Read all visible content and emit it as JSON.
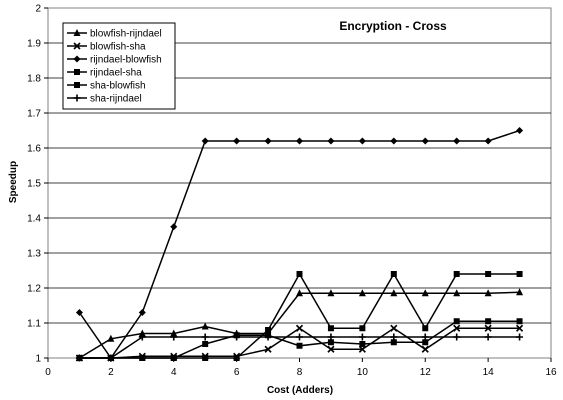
{
  "chart_data": {
    "type": "line",
    "title": "Encryption - Cross",
    "xlabel": "Cost (Adders)",
    "ylabel": "Speedup",
    "xlim": [
      0,
      16
    ],
    "ylim": [
      1,
      2
    ],
    "xticks": [
      0,
      2,
      4,
      6,
      8,
      10,
      12,
      14,
      16
    ],
    "yticks": [
      1,
      1.1,
      1.2,
      1.3,
      1.4,
      1.5,
      1.6,
      1.7,
      1.8,
      1.9,
      2
    ],
    "grid": "horizontal",
    "legend_position": "top-left",
    "series": [
      {
        "name": "blowfish-rijndael",
        "marker": "triangle",
        "x": [
          1,
          2,
          3,
          4,
          5,
          6,
          7,
          8,
          9,
          10,
          11,
          12,
          13,
          14,
          15
        ],
        "y": [
          1.0,
          1.055,
          1.07,
          1.07,
          1.09,
          1.07,
          1.07,
          1.185,
          1.185,
          1.185,
          1.185,
          1.185,
          1.185,
          1.185,
          1.188
        ]
      },
      {
        "name": "blowfish-sha",
        "marker": "x",
        "x": [
          1,
          2,
          3,
          4,
          5,
          6,
          7,
          8,
          9,
          10,
          11,
          12,
          13,
          14,
          15
        ],
        "y": [
          1.0,
          1.0,
          1.005,
          1.005,
          1.005,
          1.005,
          1.025,
          1.085,
          1.025,
          1.025,
          1.085,
          1.025,
          1.085,
          1.085,
          1.085
        ]
      },
      {
        "name": "rijndael-blowfish",
        "marker": "diamond",
        "x": [
          1,
          2,
          3,
          4,
          5,
          6,
          7,
          8,
          9,
          10,
          11,
          12,
          13,
          14,
          15
        ],
        "y": [
          1.13,
          1.0,
          1.13,
          1.375,
          1.62,
          1.62,
          1.62,
          1.62,
          1.62,
          1.62,
          1.62,
          1.62,
          1.62,
          1.62,
          1.65
        ]
      },
      {
        "name": "rijndael-sha",
        "marker": "square",
        "x": [
          1,
          2,
          3,
          4,
          5,
          6,
          7,
          8,
          9,
          10,
          11,
          12,
          13,
          14,
          15
        ],
        "y": [
          1.0,
          1.0,
          1.0,
          1.0,
          1.0,
          1.0,
          1.08,
          1.24,
          1.085,
          1.085,
          1.24,
          1.085,
          1.24,
          1.24,
          1.24
        ]
      },
      {
        "name": "sha-blowfish",
        "marker": "square",
        "x": [
          1,
          2,
          3,
          4,
          5,
          6,
          7,
          8,
          9,
          10,
          11,
          12,
          13,
          14,
          15
        ],
        "y": [
          1.0,
          1.0,
          1.0,
          1.0,
          1.04,
          1.065,
          1.065,
          1.035,
          1.045,
          1.04,
          1.045,
          1.045,
          1.105,
          1.105,
          1.105
        ]
      },
      {
        "name": "sha-rijndael",
        "marker": "plus",
        "x": [
          1,
          2,
          3,
          4,
          5,
          6,
          7,
          8,
          9,
          10,
          11,
          12,
          13,
          14,
          15
        ],
        "y": [
          1.0,
          1.0,
          1.06,
          1.06,
          1.06,
          1.06,
          1.06,
          1.06,
          1.06,
          1.06,
          1.06,
          1.06,
          1.06,
          1.06,
          1.06
        ]
      }
    ]
  }
}
